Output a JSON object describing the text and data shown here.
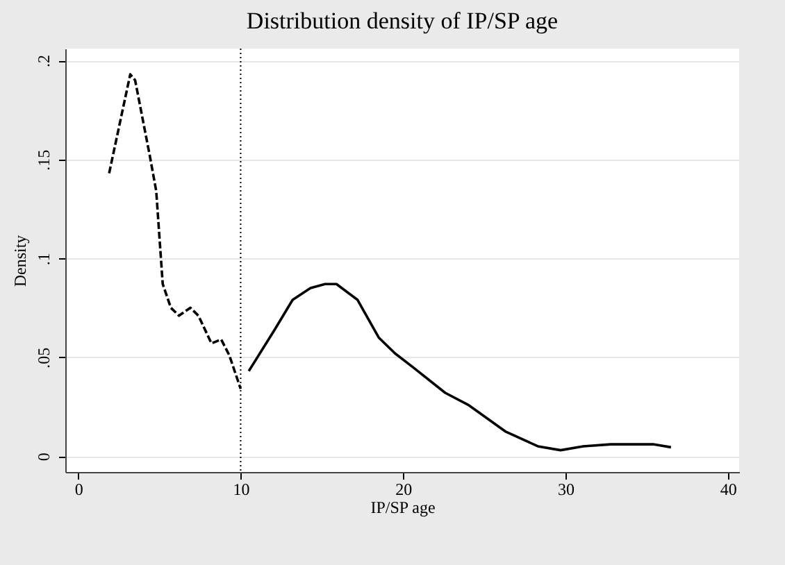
{
  "chart_data": {
    "type": "line",
    "title": "Distribution density of IP/SP age",
    "xlabel": "IP/SP age",
    "ylabel": "Density",
    "xlim": [
      -0.8,
      40.7
    ],
    "xticks": [
      0,
      10,
      20,
      30,
      40
    ],
    "ylim": [
      -0.008,
      0.206
    ],
    "yticks": [
      {
        "value": 0,
        "label": "0"
      },
      {
        "value": 0.05,
        "label": ".05"
      },
      {
        "value": 0.1,
        "label": ".1"
      },
      {
        "value": 0.15,
        "label": ".15"
      },
      {
        "value": 0.2,
        "label": ".2"
      }
    ],
    "grid": "y",
    "series": [
      {
        "color": "#000000",
        "line_style": "dashed",
        "x": [
          1.9,
          3.2,
          3.5,
          4.4,
          4.8,
          5.2,
          5.7,
          6.2,
          6.9,
          7.4,
          8.2,
          8.8,
          9.3,
          10
        ],
        "values": [
          0.143,
          0.193,
          0.19,
          0.152,
          0.134,
          0.087,
          0.075,
          0.071,
          0.075,
          0.071,
          0.057,
          0.059,
          0.051,
          0.034
        ]
      },
      {
        "color": "#000000",
        "line_style": "solid",
        "x": [
          10.5,
          12.1,
          13.2,
          14.3,
          15.2,
          15.9,
          17.2,
          18.5,
          19.5,
          20.6,
          22.6,
          24,
          26.3,
          28.3,
          29.7,
          31.1,
          32.8,
          35.4,
          36.5
        ],
        "values": [
          0.043,
          0.064,
          0.079,
          0.085,
          0.087,
          0.087,
          0.079,
          0.06,
          0.052,
          0.045,
          0.032,
          0.026,
          0.0125,
          0.005,
          0.003,
          0.005,
          0.006,
          0.006,
          0.0045
        ]
      }
    ],
    "ref_lines": [
      {
        "axis": "x",
        "value": 10,
        "line_style": "dotted",
        "color": "#000000"
      }
    ]
  }
}
